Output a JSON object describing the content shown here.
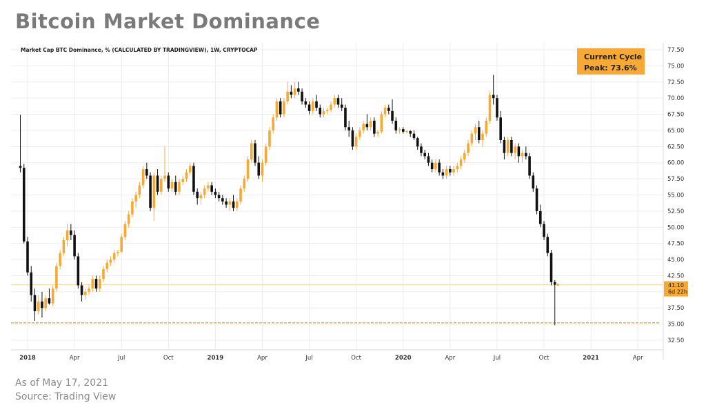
{
  "title": "Bitcoin Market Dominance",
  "footer": {
    "date": "As of May 17, 2021",
    "source": "Source: Trading View"
  },
  "colors": {
    "up": "#f7a933",
    "down": "#111111",
    "accent": "#f7a933",
    "grid": "#ececec",
    "axis_text": "#333333"
  },
  "chart_data": {
    "type": "candlestick",
    "series_label": "Market Cap BTC Dominance, % (CALCULATED BY TRADINGVIEW), 1W, CRYPTOCAP",
    "y_ticks": [
      "77.50",
      "75.00",
      "72.50",
      "70.00",
      "67.50",
      "65.00",
      "62.50",
      "60.00",
      "57.50",
      "55.00",
      "52.50",
      "50.00",
      "47.50",
      "45.00",
      "42.50",
      "40.00",
      "37.50",
      "35.00",
      "32.50"
    ],
    "ylim": [
      31.5,
      78.5
    ],
    "x_range_weeks": [
      -3,
      176
    ],
    "x_ticks": [
      {
        "label": "2018",
        "week": 0,
        "bold": true
      },
      {
        "label": "Apr",
        "week": 13,
        "bold": false
      },
      {
        "label": "Jul",
        "week": 26,
        "bold": false
      },
      {
        "label": "Oct",
        "week": 39,
        "bold": false
      },
      {
        "label": "2019",
        "week": 52,
        "bold": true
      },
      {
        "label": "Apr",
        "week": 65,
        "bold": false
      },
      {
        "label": "Jul",
        "week": 78,
        "bold": false
      },
      {
        "label": "Oct",
        "week": 91,
        "bold": false
      },
      {
        "label": "2020",
        "week": 104,
        "bold": true
      },
      {
        "label": "Apr",
        "week": 117,
        "bold": false
      },
      {
        "label": "Jul",
        "week": 130,
        "bold": false
      },
      {
        "label": "Oct",
        "week": 143,
        "bold": false
      },
      {
        "label": "2021",
        "week": 156,
        "bold": true
      },
      {
        "label": "Apr",
        "week": 169,
        "bold": false
      }
    ],
    "annotation": {
      "line1": "Current Cycle",
      "line2": "Peak: 73.6%"
    },
    "current_value": "41.10",
    "current_countdown": "6d 22h",
    "current_level": 41.1,
    "support_level": 35.2,
    "candles": [
      {
        "w": -2,
        "o": 59.5,
        "h": 67.4,
        "l": 58.5,
        "c": 59.2
      },
      {
        "w": -1,
        "o": 59.2,
        "h": 59.8,
        "l": 47.5,
        "c": 47.8
      },
      {
        "w": 0,
        "o": 47.8,
        "h": 48.5,
        "l": 42.5,
        "c": 43.0
      },
      {
        "w": 1,
        "o": 43.0,
        "h": 44.0,
        "l": 38.5,
        "c": 39.5
      },
      {
        "w": 2,
        "o": 39.5,
        "h": 40.5,
        "l": 35.5,
        "c": 37.0
      },
      {
        "w": 3,
        "o": 37.0,
        "h": 39.5,
        "l": 36.5,
        "c": 38.5
      },
      {
        "w": 4,
        "o": 38.5,
        "h": 40.0,
        "l": 36.0,
        "c": 37.5
      },
      {
        "w": 5,
        "o": 37.5,
        "h": 39.5,
        "l": 37.0,
        "c": 39.0
      },
      {
        "w": 6,
        "o": 39.0,
        "h": 40.5,
        "l": 38.0,
        "c": 38.2
      },
      {
        "w": 7,
        "o": 38.2,
        "h": 41.0,
        "l": 37.8,
        "c": 40.5
      },
      {
        "w": 8,
        "o": 40.5,
        "h": 44.5,
        "l": 40.0,
        "c": 44.0
      },
      {
        "w": 9,
        "o": 44.0,
        "h": 46.5,
        "l": 43.5,
        "c": 46.0
      },
      {
        "w": 10,
        "o": 46.0,
        "h": 48.5,
        "l": 45.5,
        "c": 48.0
      },
      {
        "w": 11,
        "o": 48.0,
        "h": 50.5,
        "l": 47.0,
        "c": 49.5
      },
      {
        "w": 12,
        "o": 49.5,
        "h": 50.5,
        "l": 48.0,
        "c": 48.8
      },
      {
        "w": 13,
        "o": 48.8,
        "h": 49.5,
        "l": 45.0,
        "c": 45.5
      },
      {
        "w": 14,
        "o": 45.5,
        "h": 46.0,
        "l": 40.5,
        "c": 41.0
      },
      {
        "w": 15,
        "o": 41.0,
        "h": 41.5,
        "l": 38.5,
        "c": 39.5
      },
      {
        "w": 16,
        "o": 39.5,
        "h": 40.5,
        "l": 38.8,
        "c": 40.0
      },
      {
        "w": 17,
        "o": 40.0,
        "h": 41.0,
        "l": 39.5,
        "c": 40.5
      },
      {
        "w": 18,
        "o": 40.5,
        "h": 42.5,
        "l": 40.0,
        "c": 42.0
      },
      {
        "w": 19,
        "o": 42.0,
        "h": 42.5,
        "l": 40.0,
        "c": 40.5
      },
      {
        "w": 20,
        "o": 40.5,
        "h": 42.5,
        "l": 40.0,
        "c": 42.0
      },
      {
        "w": 21,
        "o": 42.0,
        "h": 44.0,
        "l": 41.5,
        "c": 43.5
      },
      {
        "w": 22,
        "o": 43.5,
        "h": 45.0,
        "l": 43.0,
        "c": 44.5
      },
      {
        "w": 23,
        "o": 44.5,
        "h": 45.5,
        "l": 44.0,
        "c": 45.0
      },
      {
        "w": 24,
        "o": 45.0,
        "h": 46.5,
        "l": 44.5,
        "c": 46.0
      },
      {
        "w": 25,
        "o": 46.0,
        "h": 46.5,
        "l": 45.5,
        "c": 46.2
      },
      {
        "w": 26,
        "o": 46.2,
        "h": 49.0,
        "l": 46.0,
        "c": 48.5
      },
      {
        "w": 27,
        "o": 48.5,
        "h": 51.0,
        "l": 48.0,
        "c": 50.5
      },
      {
        "w": 28,
        "o": 50.5,
        "h": 52.5,
        "l": 50.0,
        "c": 52.0
      },
      {
        "w": 29,
        "o": 52.0,
        "h": 54.5,
        "l": 51.5,
        "c": 54.0
      },
      {
        "w": 30,
        "o": 54.0,
        "h": 55.5,
        "l": 53.0,
        "c": 55.0
      },
      {
        "w": 31,
        "o": 55.0,
        "h": 57.0,
        "l": 54.5,
        "c": 56.5
      },
      {
        "w": 32,
        "o": 56.5,
        "h": 59.5,
        "l": 56.0,
        "c": 59.0
      },
      {
        "w": 33,
        "o": 59.0,
        "h": 60.0,
        "l": 57.5,
        "c": 58.0
      },
      {
        "w": 34,
        "o": 58.0,
        "h": 58.5,
        "l": 52.5,
        "c": 53.0
      },
      {
        "w": 35,
        "o": 53.0,
        "h": 58.5,
        "l": 51.0,
        "c": 58.0
      },
      {
        "w": 36,
        "o": 58.0,
        "h": 59.0,
        "l": 55.0,
        "c": 55.5
      },
      {
        "w": 37,
        "o": 55.5,
        "h": 58.0,
        "l": 55.0,
        "c": 57.5
      },
      {
        "w": 38,
        "o": 57.5,
        "h": 62.5,
        "l": 57.0,
        "c": 58.0
      },
      {
        "w": 39,
        "o": 58.0,
        "h": 58.5,
        "l": 55.5,
        "c": 56.0
      },
      {
        "w": 40,
        "o": 56.0,
        "h": 57.5,
        "l": 55.5,
        "c": 57.0
      },
      {
        "w": 41,
        "o": 57.0,
        "h": 58.0,
        "l": 55.0,
        "c": 55.5
      },
      {
        "w": 42,
        "o": 55.5,
        "h": 57.5,
        "l": 55.0,
        "c": 57.0
      },
      {
        "w": 43,
        "o": 57.0,
        "h": 58.0,
        "l": 56.5,
        "c": 57.5
      },
      {
        "w": 44,
        "o": 57.5,
        "h": 59.0,
        "l": 57.0,
        "c": 58.5
      },
      {
        "w": 45,
        "o": 58.5,
        "h": 60.0,
        "l": 58.0,
        "c": 59.5
      },
      {
        "w": 46,
        "o": 59.5,
        "h": 60.0,
        "l": 55.0,
        "c": 55.5
      },
      {
        "w": 47,
        "o": 55.5,
        "h": 56.0,
        "l": 53.5,
        "c": 54.5
      },
      {
        "w": 48,
        "o": 54.5,
        "h": 55.5,
        "l": 53.5,
        "c": 55.0
      },
      {
        "w": 49,
        "o": 55.0,
        "h": 56.5,
        "l": 54.5,
        "c": 56.0
      },
      {
        "w": 50,
        "o": 56.0,
        "h": 57.0,
        "l": 55.5,
        "c": 56.5
      },
      {
        "w": 51,
        "o": 56.5,
        "h": 57.0,
        "l": 55.0,
        "c": 55.5
      },
      {
        "w": 52,
        "o": 55.5,
        "h": 56.0,
        "l": 54.5,
        "c": 55.0
      },
      {
        "w": 53,
        "o": 55.0,
        "h": 55.5,
        "l": 54.0,
        "c": 54.5
      },
      {
        "w": 54,
        "o": 54.5,
        "h": 55.0,
        "l": 53.5,
        "c": 54.0
      },
      {
        "w": 55,
        "o": 54.0,
        "h": 54.5,
        "l": 53.0,
        "c": 53.5
      },
      {
        "w": 56,
        "o": 53.5,
        "h": 54.5,
        "l": 52.5,
        "c": 54.0
      },
      {
        "w": 57,
        "o": 54.0,
        "h": 55.0,
        "l": 52.5,
        "c": 53.0
      },
      {
        "w": 58,
        "o": 53.0,
        "h": 54.5,
        "l": 52.5,
        "c": 54.0
      },
      {
        "w": 59,
        "o": 54.0,
        "h": 56.5,
        "l": 53.5,
        "c": 56.0
      },
      {
        "w": 60,
        "o": 56.0,
        "h": 58.0,
        "l": 55.5,
        "c": 57.5
      },
      {
        "w": 61,
        "o": 57.5,
        "h": 61.0,
        "l": 57.0,
        "c": 60.5
      },
      {
        "w": 62,
        "o": 60.5,
        "h": 63.5,
        "l": 60.0,
        "c": 63.0
      },
      {
        "w": 63,
        "o": 63.0,
        "h": 63.5,
        "l": 59.5,
        "c": 60.0
      },
      {
        "w": 64,
        "o": 60.0,
        "h": 61.0,
        "l": 57.5,
        "c": 58.0
      },
      {
        "w": 65,
        "o": 58.0,
        "h": 60.5,
        "l": 57.0,
        "c": 60.0
      },
      {
        "w": 66,
        "o": 60.0,
        "h": 63.0,
        "l": 59.5,
        "c": 62.5
      },
      {
        "w": 67,
        "o": 62.5,
        "h": 65.5,
        "l": 62.0,
        "c": 65.0
      },
      {
        "w": 68,
        "o": 65.0,
        "h": 67.5,
        "l": 64.5,
        "c": 67.0
      },
      {
        "w": 69,
        "o": 67.0,
        "h": 70.0,
        "l": 66.5,
        "c": 69.5
      },
      {
        "w": 70,
        "o": 69.5,
        "h": 70.0,
        "l": 67.0,
        "c": 67.5
      },
      {
        "w": 71,
        "o": 67.5,
        "h": 70.0,
        "l": 67.0,
        "c": 69.5
      },
      {
        "w": 72,
        "o": 69.5,
        "h": 72.5,
        "l": 69.0,
        "c": 71.0
      },
      {
        "w": 73,
        "o": 71.0,
        "h": 72.0,
        "l": 70.0,
        "c": 70.5
      },
      {
        "w": 74,
        "o": 70.5,
        "h": 72.5,
        "l": 70.0,
        "c": 71.5
      },
      {
        "w": 75,
        "o": 71.5,
        "h": 72.5,
        "l": 70.5,
        "c": 71.0
      },
      {
        "w": 76,
        "o": 71.0,
        "h": 71.5,
        "l": 69.0,
        "c": 69.5
      },
      {
        "w": 77,
        "o": 69.5,
        "h": 70.0,
        "l": 68.5,
        "c": 69.0
      },
      {
        "w": 78,
        "o": 69.0,
        "h": 69.5,
        "l": 67.5,
        "c": 68.0
      },
      {
        "w": 79,
        "o": 68.0,
        "h": 70.0,
        "l": 67.5,
        "c": 69.5
      },
      {
        "w": 80,
        "o": 69.5,
        "h": 70.5,
        "l": 68.0,
        "c": 68.5
      },
      {
        "w": 81,
        "o": 68.5,
        "h": 69.0,
        "l": 67.0,
        "c": 67.5
      },
      {
        "w": 82,
        "o": 67.5,
        "h": 68.5,
        "l": 67.0,
        "c": 68.0
      },
      {
        "w": 83,
        "o": 68.0,
        "h": 68.5,
        "l": 67.5,
        "c": 68.2
      },
      {
        "w": 84,
        "o": 68.2,
        "h": 69.5,
        "l": 67.8,
        "c": 69.0
      },
      {
        "w": 85,
        "o": 69.0,
        "h": 70.5,
        "l": 68.5,
        "c": 70.0
      },
      {
        "w": 86,
        "o": 70.0,
        "h": 70.5,
        "l": 68.5,
        "c": 69.0
      },
      {
        "w": 87,
        "o": 69.0,
        "h": 70.0,
        "l": 68.0,
        "c": 68.5
      },
      {
        "w": 88,
        "o": 68.5,
        "h": 69.0,
        "l": 65.0,
        "c": 65.5
      },
      {
        "w": 89,
        "o": 65.5,
        "h": 66.5,
        "l": 64.0,
        "c": 65.0
      },
      {
        "w": 90,
        "o": 65.0,
        "h": 65.5,
        "l": 62.0,
        "c": 62.5
      },
      {
        "w": 91,
        "o": 62.5,
        "h": 64.5,
        "l": 62.0,
        "c": 64.0
      },
      {
        "w": 92,
        "o": 64.0,
        "h": 65.5,
        "l": 63.5,
        "c": 65.0
      },
      {
        "w": 93,
        "o": 65.0,
        "h": 66.5,
        "l": 64.5,
        "c": 66.0
      },
      {
        "w": 94,
        "o": 66.0,
        "h": 67.5,
        "l": 65.0,
        "c": 65.5
      },
      {
        "w": 95,
        "o": 65.5,
        "h": 67.0,
        "l": 65.0,
        "c": 66.5
      },
      {
        "w": 96,
        "o": 66.5,
        "h": 67.0,
        "l": 64.0,
        "c": 64.5
      },
      {
        "w": 97,
        "o": 64.5,
        "h": 65.0,
        "l": 64.0,
        "c": 64.8
      },
      {
        "w": 98,
        "o": 64.8,
        "h": 68.0,
        "l": 64.5,
        "c": 67.5
      },
      {
        "w": 99,
        "o": 67.5,
        "h": 69.0,
        "l": 67.0,
        "c": 68.5
      },
      {
        "w": 100,
        "o": 68.5,
        "h": 69.0,
        "l": 67.5,
        "c": 68.0
      },
      {
        "w": 101,
        "o": 68.0,
        "h": 69.8,
        "l": 66.0,
        "c": 66.5
      },
      {
        "w": 102,
        "o": 66.5,
        "h": 67.0,
        "l": 64.5,
        "c": 65.0
      },
      {
        "w": 103,
        "o": 65.0,
        "h": 65.5,
        "l": 64.5,
        "c": 65.2
      },
      {
        "w": 104,
        "o": 65.2,
        "h": 65.5,
        "l": 64.5,
        "c": 64.8
      },
      {
        "w": 105,
        "o": 64.8,
        "h": 65.0,
        "l": 64.5,
        "c": 64.9
      },
      {
        "w": 106,
        "o": 64.9,
        "h": 65.0,
        "l": 64.0,
        "c": 64.5
      },
      {
        "w": 107,
        "o": 64.5,
        "h": 65.0,
        "l": 63.5,
        "c": 63.8
      },
      {
        "w": 108,
        "o": 63.8,
        "h": 64.0,
        "l": 62.0,
        "c": 62.5
      },
      {
        "w": 109,
        "o": 62.5,
        "h": 63.0,
        "l": 61.0,
        "c": 61.5
      },
      {
        "w": 110,
        "o": 61.5,
        "h": 62.0,
        "l": 60.5,
        "c": 61.0
      },
      {
        "w": 111,
        "o": 61.0,
        "h": 61.5,
        "l": 59.5,
        "c": 60.0
      },
      {
        "w": 112,
        "o": 60.0,
        "h": 60.5,
        "l": 58.5,
        "c": 59.0
      },
      {
        "w": 113,
        "o": 59.0,
        "h": 60.5,
        "l": 58.5,
        "c": 60.0
      },
      {
        "w": 114,
        "o": 60.0,
        "h": 60.5,
        "l": 58.0,
        "c": 58.5
      },
      {
        "w": 115,
        "o": 58.5,
        "h": 59.0,
        "l": 57.5,
        "c": 58.0
      },
      {
        "w": 116,
        "o": 58.0,
        "h": 59.5,
        "l": 57.5,
        "c": 59.0
      },
      {
        "w": 117,
        "o": 59.0,
        "h": 59.5,
        "l": 58.0,
        "c": 58.5
      },
      {
        "w": 118,
        "o": 58.5,
        "h": 59.5,
        "l": 58.0,
        "c": 59.0
      },
      {
        "w": 119,
        "o": 59.0,
        "h": 60.0,
        "l": 58.5,
        "c": 59.5
      },
      {
        "w": 120,
        "o": 59.5,
        "h": 61.0,
        "l": 59.0,
        "c": 60.5
      },
      {
        "w": 121,
        "o": 60.5,
        "h": 62.0,
        "l": 60.0,
        "c": 61.5
      },
      {
        "w": 122,
        "o": 61.5,
        "h": 63.5,
        "l": 61.0,
        "c": 63.0
      },
      {
        "w": 123,
        "o": 63.0,
        "h": 65.0,
        "l": 62.5,
        "c": 64.5
      },
      {
        "w": 124,
        "o": 64.5,
        "h": 66.0,
        "l": 63.5,
        "c": 65.5
      },
      {
        "w": 125,
        "o": 65.5,
        "h": 66.5,
        "l": 63.0,
        "c": 63.5
      },
      {
        "w": 126,
        "o": 63.5,
        "h": 65.0,
        "l": 62.5,
        "c": 64.5
      },
      {
        "w": 127,
        "o": 64.5,
        "h": 67.0,
        "l": 64.0,
        "c": 66.5
      },
      {
        "w": 128,
        "o": 66.5,
        "h": 71.0,
        "l": 66.0,
        "c": 70.5
      },
      {
        "w": 129,
        "o": 70.5,
        "h": 73.6,
        "l": 69.0,
        "c": 70.0
      },
      {
        "w": 130,
        "o": 70.0,
        "h": 70.5,
        "l": 66.5,
        "c": 67.0
      },
      {
        "w": 131,
        "o": 67.0,
        "h": 68.0,
        "l": 63.0,
        "c": 63.5
      },
      {
        "w": 132,
        "o": 63.5,
        "h": 64.0,
        "l": 60.5,
        "c": 61.5
      },
      {
        "w": 133,
        "o": 61.5,
        "h": 64.0,
        "l": 61.0,
        "c": 63.5
      },
      {
        "w": 134,
        "o": 63.5,
        "h": 64.0,
        "l": 61.0,
        "c": 61.5
      },
      {
        "w": 135,
        "o": 61.5,
        "h": 63.0,
        "l": 60.5,
        "c": 62.5
      },
      {
        "w": 136,
        "o": 62.5,
        "h": 63.0,
        "l": 60.0,
        "c": 61.0
      },
      {
        "w": 137,
        "o": 61.0,
        "h": 62.0,
        "l": 60.0,
        "c": 61.5
      },
      {
        "w": 138,
        "o": 61.5,
        "h": 62.5,
        "l": 60.5,
        "c": 61.0
      },
      {
        "w": 139,
        "o": 61.0,
        "h": 61.5,
        "l": 57.5,
        "c": 58.0
      },
      {
        "w": 140,
        "o": 58.0,
        "h": 58.5,
        "l": 55.5,
        "c": 56.0
      },
      {
        "w": 141,
        "o": 56.0,
        "h": 56.5,
        "l": 52.0,
        "c": 52.5
      },
      {
        "w": 142,
        "o": 52.5,
        "h": 53.5,
        "l": 50.0,
        "c": 50.5
      },
      {
        "w": 143,
        "o": 50.5,
        "h": 51.0,
        "l": 48.0,
        "c": 48.5
      },
      {
        "w": 144,
        "o": 48.5,
        "h": 49.0,
        "l": 45.5,
        "c": 46.0
      },
      {
        "w": 145,
        "o": 46.0,
        "h": 46.5,
        "l": 41.0,
        "c": 41.5
      },
      {
        "w": 146,
        "o": 41.5,
        "h": 41.8,
        "l": 34.8,
        "c": 41.1
      }
    ]
  }
}
